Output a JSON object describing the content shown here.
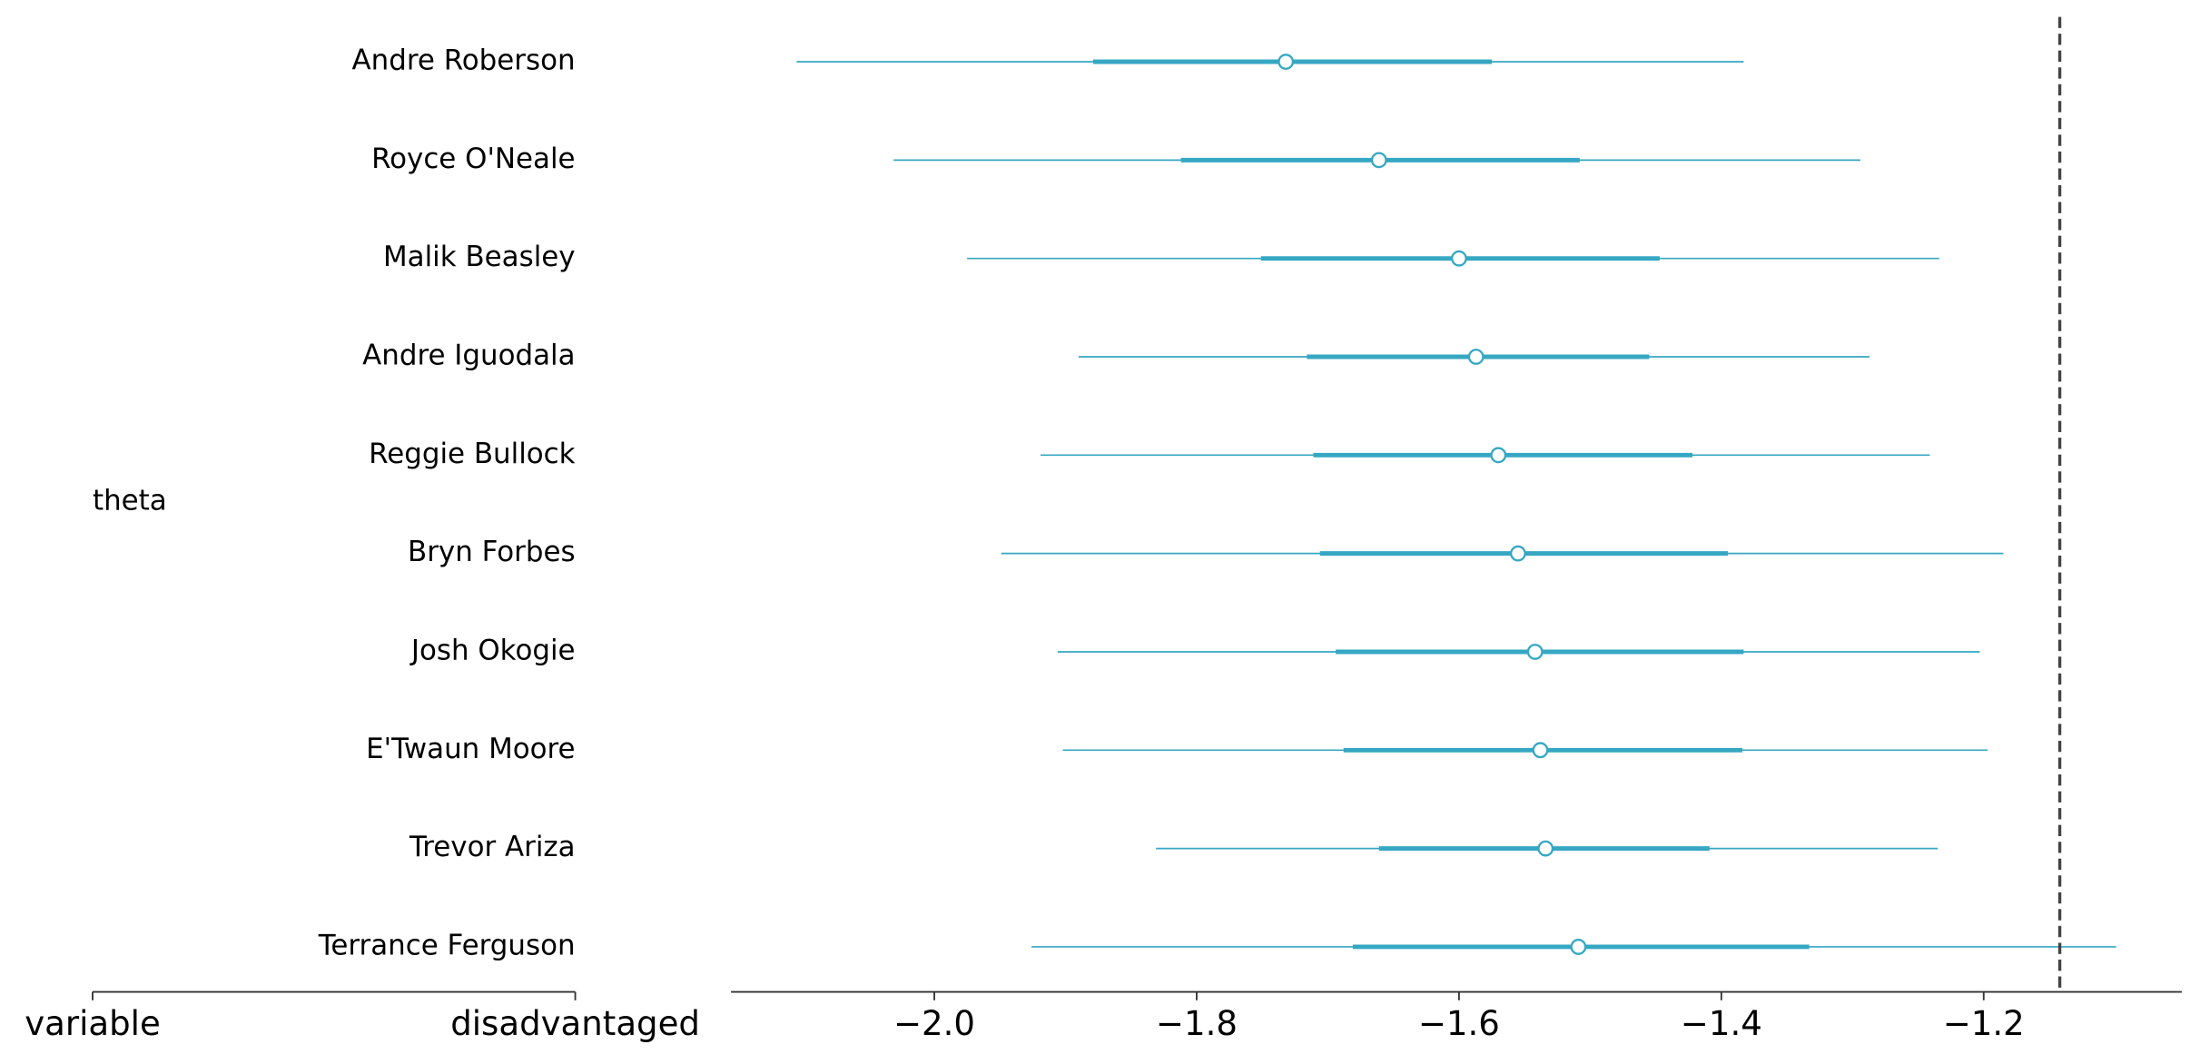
{
  "chart_data": {
    "type": "forest",
    "group_label": "theta",
    "label_columns": [
      "variable",
      "disadvantaged"
    ],
    "categories": [
      "Andre Roberson",
      "Royce O'Neale",
      "Malik Beasley",
      "Andre Iguodala",
      "Reggie Bullock",
      "Bryn Forbes",
      "Josh Okogie",
      "E'Twaun Moore",
      "Trevor Ariza",
      "Terrance Ferguson"
    ],
    "median": [
      -1.732,
      -1.661,
      -1.6,
      -1.587,
      -1.57,
      -1.555,
      -1.542,
      -1.538,
      -1.534,
      -1.509
    ],
    "inner_interval": [
      [
        -1.879,
        -1.575
      ],
      [
        -1.812,
        -1.508
      ],
      [
        -1.751,
        -1.447
      ],
      [
        -1.716,
        -1.455
      ],
      [
        -1.711,
        -1.422
      ],
      [
        -1.706,
        -1.395
      ],
      [
        -1.694,
        -1.383
      ],
      [
        -1.688,
        -1.384
      ],
      [
        -1.661,
        -1.409
      ],
      [
        -1.681,
        -1.333
      ]
    ],
    "outer_interval": [
      [
        -2.105,
        -1.383
      ],
      [
        -2.031,
        -1.294
      ],
      [
        -1.975,
        -1.234
      ],
      [
        -1.89,
        -1.287
      ],
      [
        -1.919,
        -1.241
      ],
      [
        -1.949,
        -1.185
      ],
      [
        -1.906,
        -1.203
      ],
      [
        -1.902,
        -1.197
      ],
      [
        -1.831,
        -1.235
      ],
      [
        -1.926,
        -1.099
      ]
    ],
    "color": "#36a7c2",
    "reference_value": -1.142,
    "xlim": [
      -2.155,
      -1.049
    ],
    "xticks": [
      {
        "value": -2.0,
        "label": "−2.0"
      },
      {
        "value": -1.8,
        "label": "−1.8"
      },
      {
        "value": -1.6,
        "label": "−1.6"
      },
      {
        "value": -1.4,
        "label": "−1.4"
      },
      {
        "value": -1.2,
        "label": "−1.2"
      }
    ]
  }
}
